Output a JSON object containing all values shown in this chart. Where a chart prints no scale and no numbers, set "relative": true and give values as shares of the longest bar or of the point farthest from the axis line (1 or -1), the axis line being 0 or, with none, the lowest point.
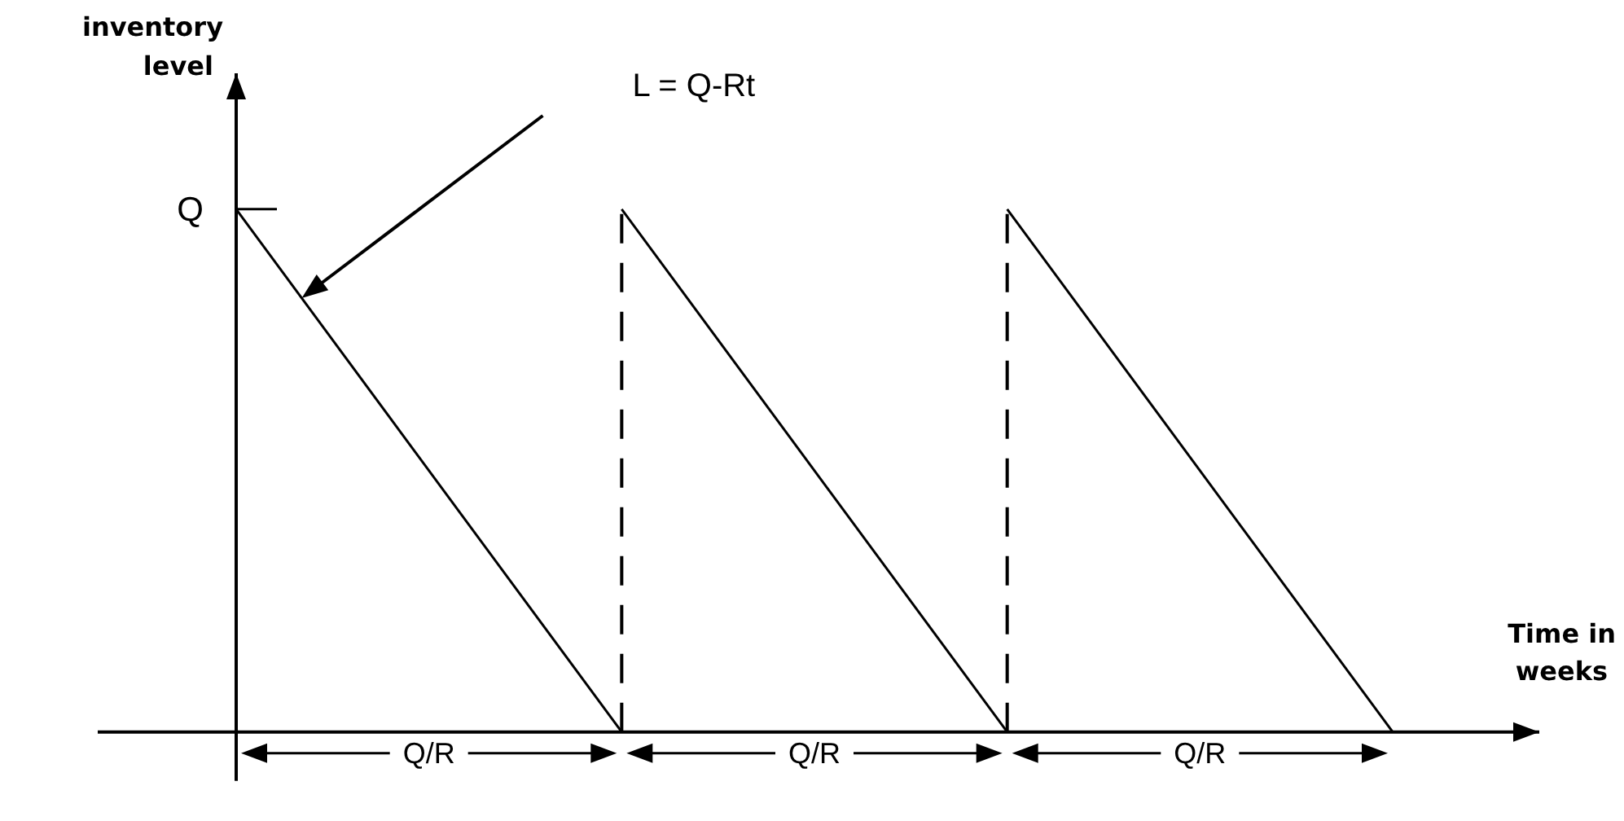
{
  "chart_data": {
    "type": "line",
    "relative": true,
    "xlabel": "Time in weeks",
    "ylabel": "inventory level",
    "categories": [
      null,
      null,
      null,
      null
    ],
    "series": [
      {
        "color": "#000000",
        "values": [
          1,
          0,
          null,
          null
        ]
      },
      {
        "color": "#000000",
        "values": [
          null,
          1,
          0,
          null
        ]
      },
      {
        "color": "#000000",
        "values": [
          null,
          null,
          1,
          0
        ]
      }
    ],
    "annotations": [
      "Q",
      "L = Q-Rt",
      "Q/R",
      "Q/R",
      "Q/R"
    ]
  }
}
